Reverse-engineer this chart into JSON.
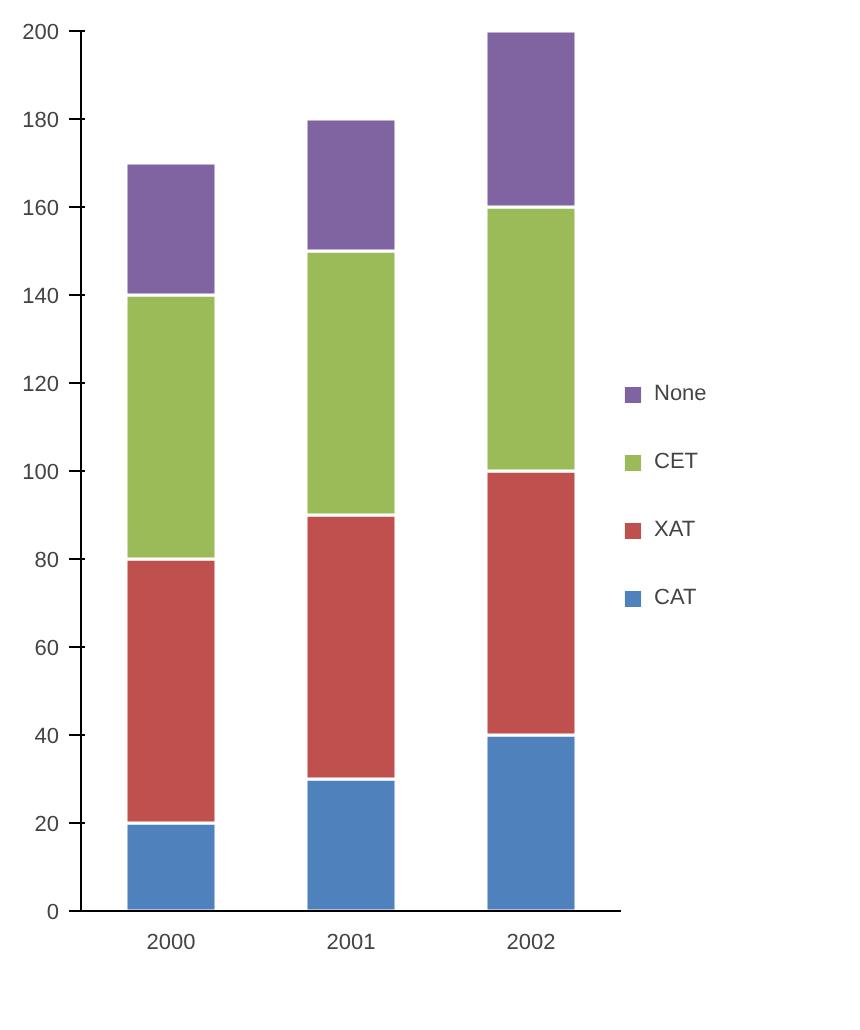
{
  "chart_data": {
    "type": "bar",
    "stacked": true,
    "categories": [
      "2000",
      "2001",
      "2002"
    ],
    "series": [
      {
        "name": "CAT",
        "color": "#4f81bd",
        "values": [
          20,
          30,
          40
        ]
      },
      {
        "name": "XAT",
        "color": "#c0504d",
        "values": [
          60,
          60,
          60
        ]
      },
      {
        "name": "CET",
        "color": "#9bbb59",
        "values": [
          60,
          60,
          60
        ]
      },
      {
        "name": "None",
        "color": "#8064a2",
        "values": [
          30,
          30,
          40
        ]
      }
    ],
    "ylim": [
      0,
      200
    ],
    "yticks": [
      0,
      20,
      40,
      60,
      80,
      100,
      120,
      140,
      160,
      180,
      200
    ],
    "grid": false,
    "legend": "right"
  }
}
